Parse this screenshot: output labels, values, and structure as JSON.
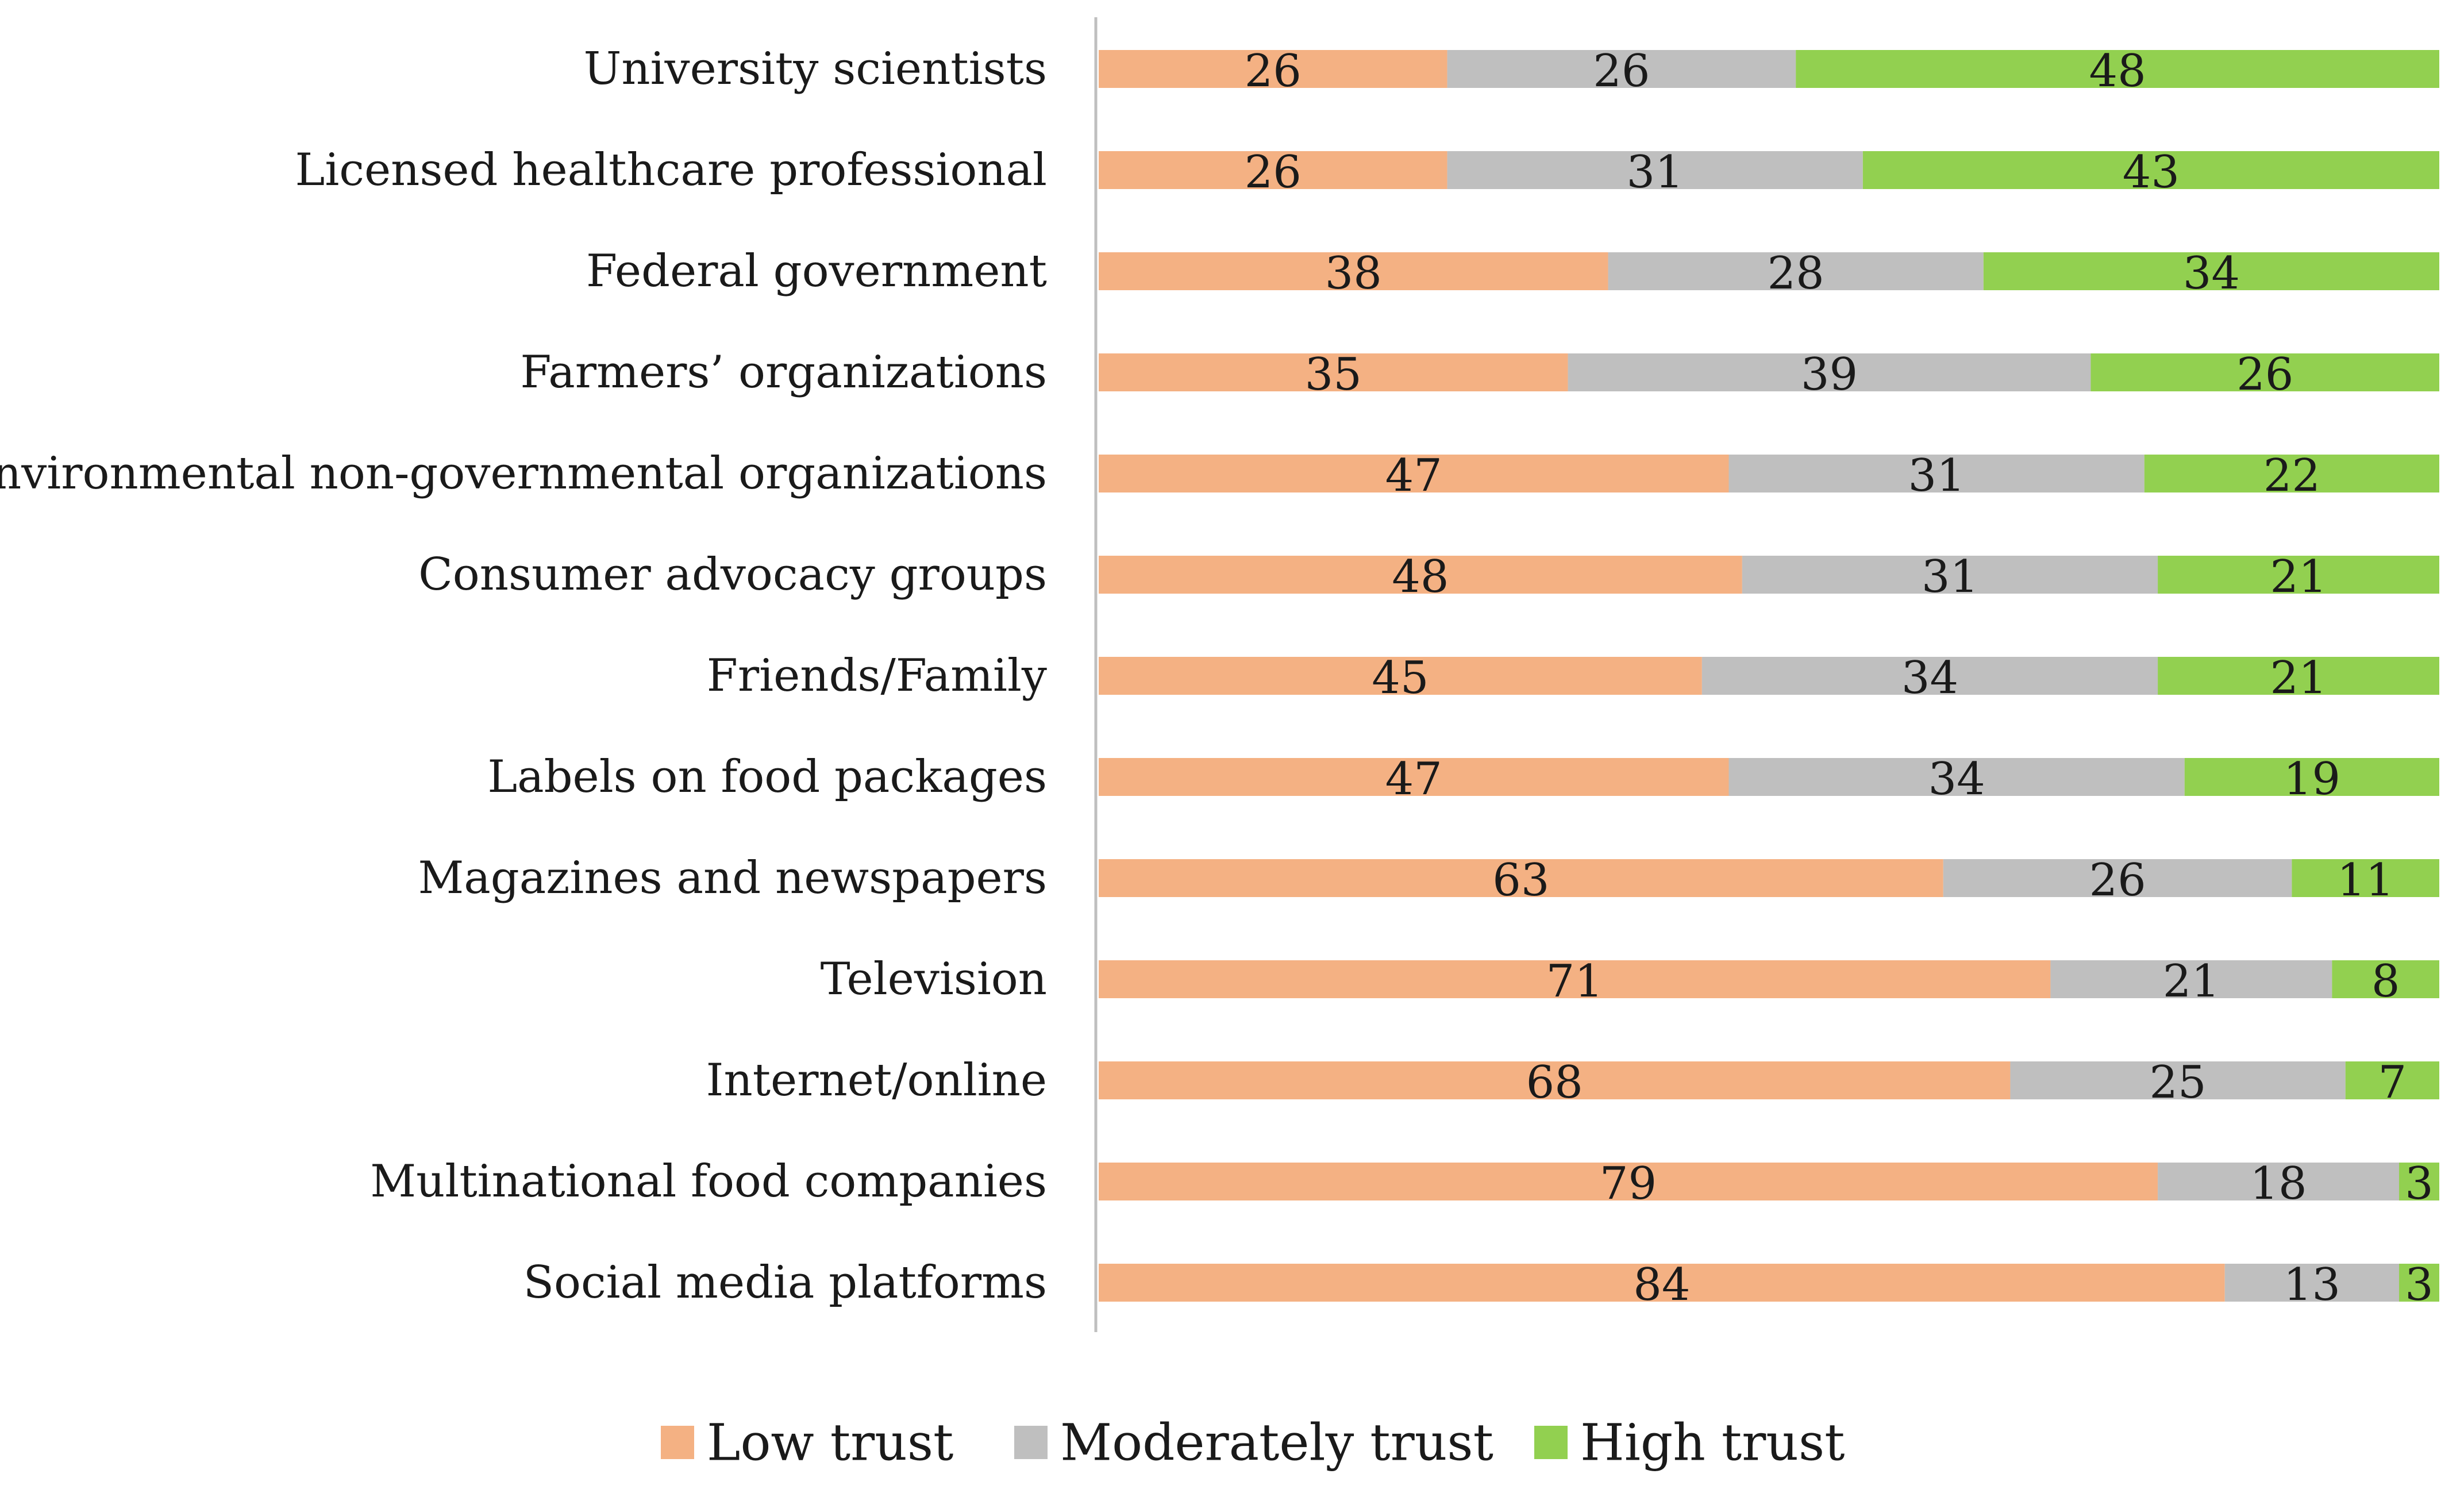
{
  "chart_data": {
    "type": "bar",
    "orientation": "horizontal",
    "stacked": true,
    "title": "",
    "xlabel": "",
    "ylabel": "",
    "xlim": [
      0,
      100
    ],
    "grid": false,
    "legend_position": "bottom",
    "categories": [
      "University scientists",
      "Licensed healthcare professional",
      "Federal government",
      "Farmers’ organizations",
      "Environmental non-governmental organizations",
      "Consumer advocacy groups",
      "Friends/Family",
      "Labels on food packages",
      "Magazines and newspapers",
      "Television",
      "Internet/online",
      "Multinational food companies",
      "Social media platforms"
    ],
    "series": [
      {
        "name": "Low trust",
        "color": "#f4b183",
        "values": [
          26,
          26,
          38,
          35,
          47,
          48,
          45,
          47,
          63,
          71,
          68,
          79,
          84
        ]
      },
      {
        "name": "Moderately trust",
        "color": "#bfbfbf",
        "values": [
          26,
          31,
          28,
          39,
          31,
          31,
          34,
          34,
          26,
          21,
          25,
          18,
          13
        ]
      },
      {
        "name": "High trust",
        "color": "#92d050",
        "values": [
          48,
          43,
          34,
          26,
          22,
          21,
          21,
          19,
          11,
          8,
          7,
          3,
          3
        ]
      }
    ]
  }
}
